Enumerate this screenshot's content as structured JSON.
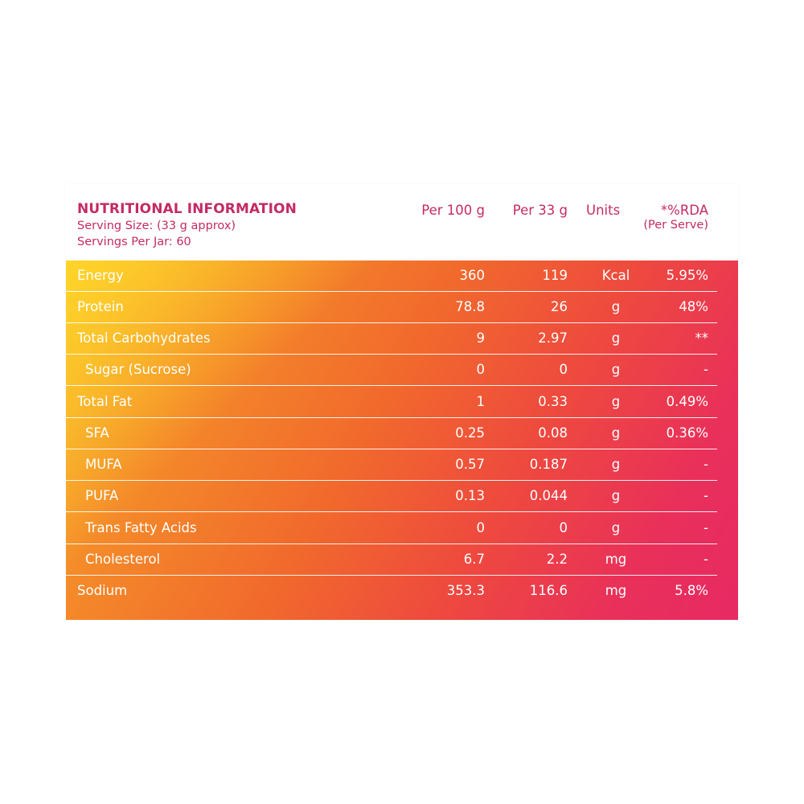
{
  "header": {
    "title": "NUTRITIONAL INFORMATION",
    "serving_size": "Serving Size: (33 g approx)",
    "servings_per_jar": "Servings Per Jar: 60",
    "col_per100": "Per 100 g",
    "col_per33": "Per 33 g",
    "col_units": "Units",
    "col_rda": "*%RDA",
    "col_rda_sub": "(Per Serve)"
  },
  "colors": {
    "title": "#c42a63",
    "gradient_start": "#f7b530",
    "gradient_end": "#e72a63",
    "text_on_gradient": "#ffffff"
  },
  "rows": [
    {
      "name": "Energy",
      "per100": "360",
      "per33": "119",
      "unit": "Kcal",
      "rda": "5.95%",
      "indent": false
    },
    {
      "name": "Protein",
      "per100": "78.8",
      "per33": "26",
      "unit": "g",
      "rda": "48%",
      "indent": false
    },
    {
      "name": "Total Carbohydrates",
      "per100": "9",
      "per33": "2.97",
      "unit": "g",
      "rda": "**",
      "indent": false
    },
    {
      "name": "Sugar (Sucrose)",
      "per100": "0",
      "per33": "0",
      "unit": "g",
      "rda": "-",
      "indent": true
    },
    {
      "name": "Total Fat",
      "per100": "1",
      "per33": "0.33",
      "unit": "g",
      "rda": "0.49%",
      "indent": false
    },
    {
      "name": "SFA",
      "per100": "0.25",
      "per33": "0.08",
      "unit": "g",
      "rda": "0.36%",
      "indent": true
    },
    {
      "name": "MUFA",
      "per100": "0.57",
      "per33": "0.187",
      "unit": "g",
      "rda": "-",
      "indent": true
    },
    {
      "name": "PUFA",
      "per100": "0.13",
      "per33": "0.044",
      "unit": "g",
      "rda": "-",
      "indent": true
    },
    {
      "name": "Trans Fatty Acids",
      "per100": "0",
      "per33": "0",
      "unit": "g",
      "rda": "-",
      "indent": true
    },
    {
      "name": "Cholesterol",
      "per100": "6.7",
      "per33": "2.2",
      "unit": "mg",
      "rda": "-",
      "indent": true
    },
    {
      "name": "Sodium",
      "per100": "353.3",
      "per33": "116.6",
      "unit": "mg",
      "rda": "5.8%",
      "indent": false
    }
  ]
}
